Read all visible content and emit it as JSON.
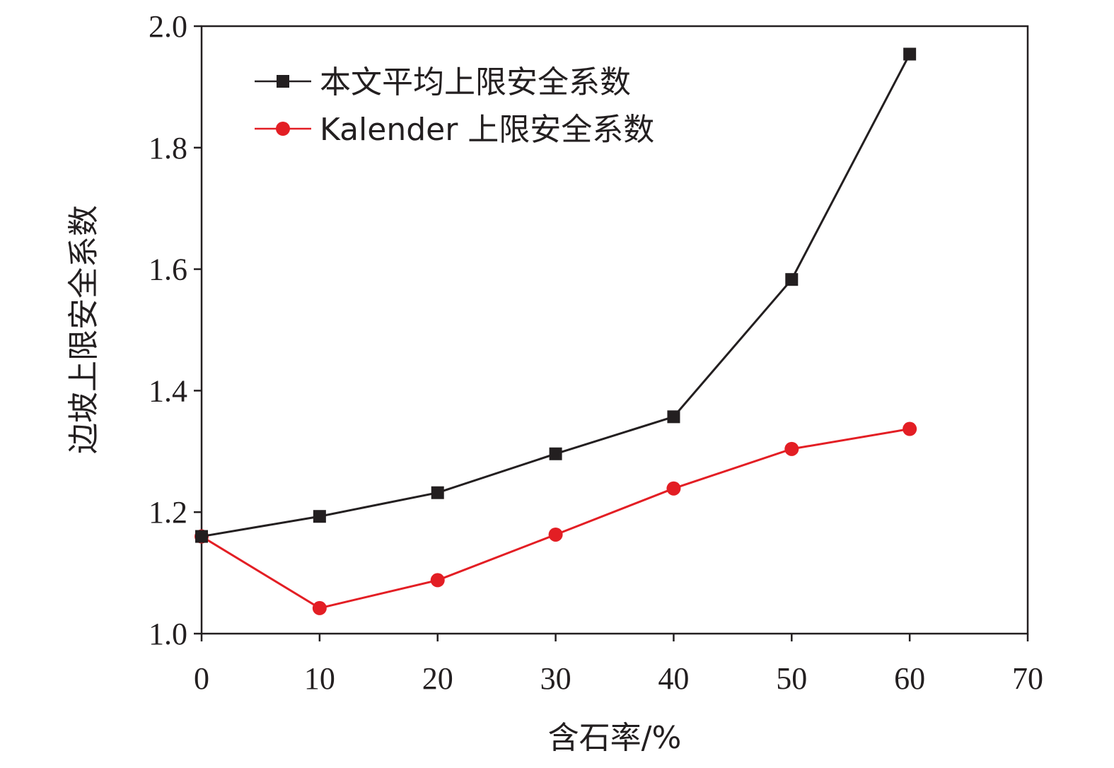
{
  "chart_data": {
    "type": "line",
    "title": "",
    "xlabel": "含石率/%",
    "ylabel": "边坡上限安全系数",
    "xlim": [
      0,
      70
    ],
    "ylim": [
      1.0,
      2.0
    ],
    "x_ticks": [
      "0",
      "10",
      "20",
      "30",
      "40",
      "50",
      "60",
      "70"
    ],
    "y_ticks": [
      "1.0",
      "1.2",
      "1.4",
      "1.6",
      "1.8",
      "2.0"
    ],
    "grid": false,
    "legend_position": "top-left",
    "x": [
      0,
      10,
      20,
      30,
      40,
      50,
      60
    ],
    "series": [
      {
        "name": "本文平均上限安全系数",
        "color": "#231f20",
        "marker": "square",
        "values": [
          1.16,
          1.193,
          1.232,
          1.296,
          1.357,
          1.583,
          1.954
        ]
      },
      {
        "name": "Kalender 上限安全系数",
        "color": "#e31e24",
        "marker": "circle",
        "values": [
          1.16,
          1.042,
          1.088,
          1.163,
          1.239,
          1.304,
          1.337
        ]
      }
    ]
  }
}
